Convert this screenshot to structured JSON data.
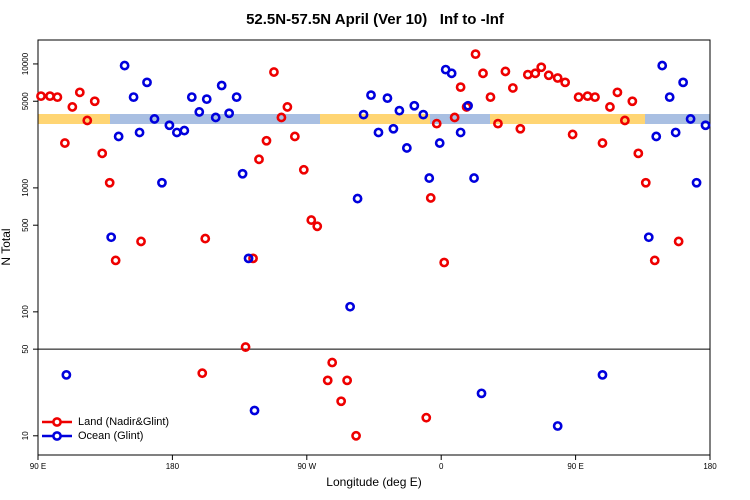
{
  "chart_data": {
    "type": "scatter",
    "title": "52.5N-57.5N April (Ver 10)   Inf to -Inf",
    "x_label": "Longitude (deg E)",
    "y_label": "N Total",
    "log_y": true,
    "xlim": [
      90,
      540
    ],
    "ylim": [
      7,
      15600
    ],
    "xticks": [
      {
        "value": 90,
        "label": "90 E"
      },
      180,
      {
        "value": 270,
        "label": "90 W"
      },
      {
        "value": 360,
        "label": "0"
      },
      {
        "value": 450,
        "label": "90 E"
      },
      {
        "value": 540,
        "label": "180"
      }
    ],
    "yticks": [
      10,
      50,
      100,
      500,
      1000,
      5000,
      10000
    ],
    "reference_line": 50,
    "legend": "bottom-left",
    "series": [
      {
        "name": "Land (Nadir&Glint)",
        "color": "#ee0000",
        "x": [
          92,
          98,
          103,
          108,
          113,
          118,
          123,
          128,
          133,
          138,
          142,
          159,
          202,
          200,
          229,
          234,
          238,
          243,
          248,
          253,
          257,
          262,
          268,
          273,
          277,
          284,
          287,
          293,
          297,
          303,
          350,
          353,
          357,
          362,
          369,
          373,
          377,
          383,
          388,
          393,
          398,
          403,
          408,
          413,
          418,
          423,
          427,
          432,
          438,
          443,
          448,
          452,
          458,
          463,
          468,
          473,
          478,
          483,
          488,
          492,
          497,
          503,
          519
        ],
        "values": [
          5500,
          5500,
          5400,
          2300,
          4500,
          5900,
          3500,
          5000,
          1900,
          1100,
          260,
          370,
          390,
          32,
          52,
          270,
          1700,
          2400,
          8600,
          3700,
          4500,
          2600,
          1400,
          550,
          490,
          28,
          39,
          19,
          28,
          10,
          14,
          830,
          3300,
          250,
          3700,
          6500,
          4500,
          12000,
          8400,
          5400,
          3300,
          8700,
          6400,
          3000,
          8200,
          8400,
          9400,
          8100,
          7700,
          7100,
          2700,
          5400,
          5500,
          5400,
          2300,
          4500,
          5900,
          3500,
          5000,
          1900,
          1100,
          260,
          370
        ]
      },
      {
        "name": "Ocean (Glint)",
        "color": "#0000dd",
        "x": [
          109,
          139,
          144,
          148,
          154,
          158,
          163,
          168,
          173,
          178,
          183,
          188,
          193,
          198,
          203,
          209,
          213,
          218,
          223,
          227,
          231,
          235,
          299,
          304,
          308,
          313,
          318,
          324,
          328,
          332,
          337,
          342,
          348,
          352,
          359,
          363,
          367,
          373,
          378,
          382,
          387,
          438,
          468,
          499,
          504,
          508,
          513,
          517,
          522,
          527,
          531,
          537
        ],
        "values": [
          31,
          400,
          2600,
          9700,
          5400,
          2800,
          7100,
          3600,
          1100,
          3200,
          2800,
          2900,
          5400,
          4100,
          5200,
          3700,
          6700,
          4000,
          5400,
          1300,
          270,
          16,
          110,
          820,
          3900,
          5600,
          2800,
          5300,
          3000,
          4200,
          2100,
          4600,
          3900,
          1200,
          2300,
          9000,
          8400,
          2800,
          4600,
          1200,
          22,
          12,
          31,
          400,
          2600,
          9700,
          5400,
          2800,
          7100,
          3600,
          1100,
          3200
        ]
      }
    ]
  }
}
